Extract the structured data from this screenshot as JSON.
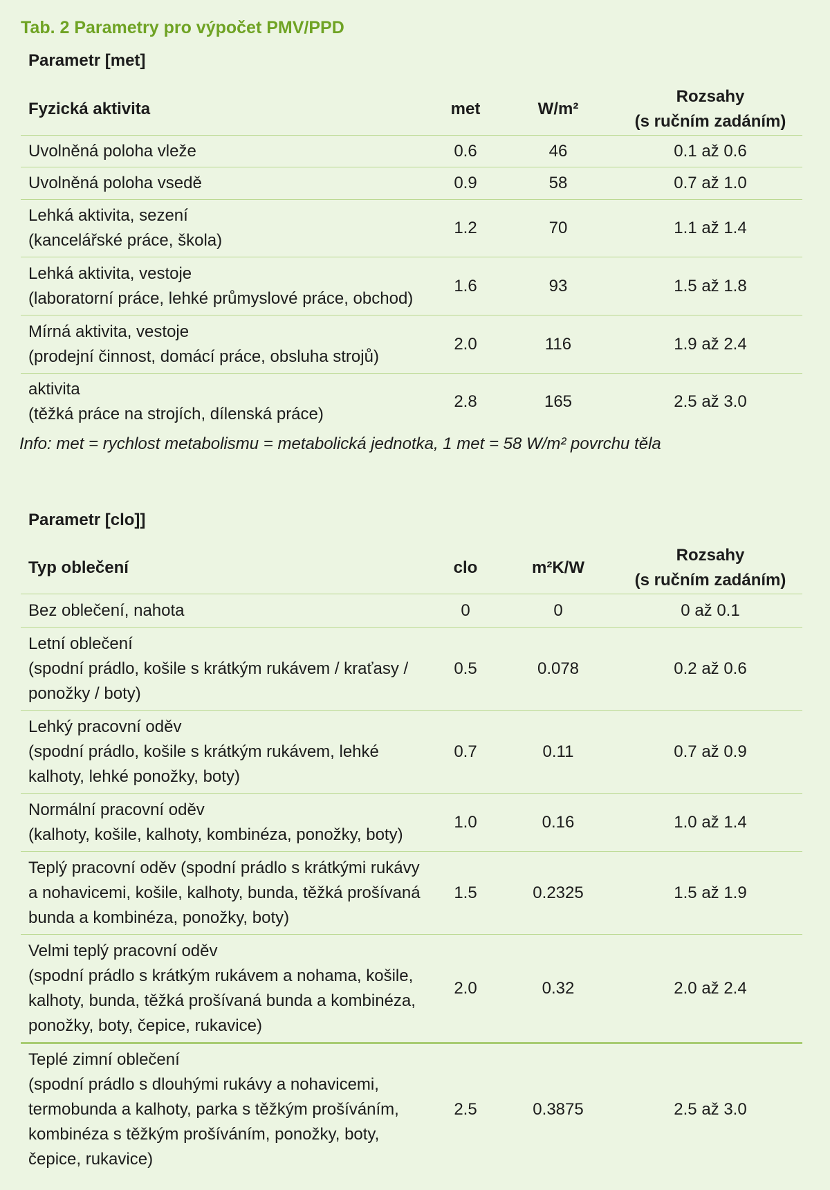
{
  "caption": "Tab. 2 Parametry pro výpočet PMV/PPD",
  "met_table": {
    "section_title": "Parametr [met]",
    "headers": {
      "label": "Fyzická aktivita",
      "col_a": "met",
      "col_b": "W/m²",
      "range_line1": "Rozsahy",
      "range_line2": "(s ručním zadáním)"
    },
    "rows": [
      {
        "l1": "Uvolněná poloha vleže",
        "l2": "",
        "a": "0.6",
        "b": "46",
        "r": "0.1 až 0.6"
      },
      {
        "l1": "Uvolněná poloha vsedě",
        "l2": "",
        "a": "0.9",
        "b": "58",
        "r": "0.7 až 1.0"
      },
      {
        "l1": "Lehká aktivita, sezení",
        "l2": "(kancelářské práce, škola)",
        "a": "1.2",
        "b": "70",
        "r": "1.1 až 1.4"
      },
      {
        "l1": "Lehká aktivita, vestoje",
        "l2": "(laboratorní práce, lehké průmyslové práce, obchod)",
        "a": "1.6",
        "b": "93",
        "r": "1.5 až 1.8"
      },
      {
        "l1": "Mírná aktivita, vestoje",
        "l2": "(prodejní činnost, domácí práce, obsluha strojů)",
        "a": "2.0",
        "b": "116",
        "r": "1.9 až 2.4"
      },
      {
        "l1": "aktivita",
        "l2": "(těžká práce na strojích, dílenská práce)",
        "a": "2.8",
        "b": "165",
        "r": "2.5 až 3.0"
      }
    ],
    "info": "Info: met = rychlost metabolismu = metabolická jednotka, 1 met = 58 W/m² povrchu těla"
  },
  "clo_table": {
    "section_title": "Parametr [clo]]",
    "headers": {
      "label": "Typ oblečení",
      "col_a": "clo",
      "col_b": "m²K/W",
      "range_line1": "Rozsahy",
      "range_line2": "(s ručním zadáním)"
    },
    "rows": [
      {
        "lines": [
          "Bez oblečení, nahota"
        ],
        "a": "0",
        "b": "0",
        "r": "0 až 0.1"
      },
      {
        "lines": [
          "Letní oblečení",
          "(spodní prádlo, košile s krátkým rukávem / kraťasy /",
          "ponožky / boty)"
        ],
        "a": "0.5",
        "b": "0.078",
        "r": "0.2 až 0.6"
      },
      {
        "lines": [
          "Lehký pracovní oděv",
          "(spodní prádlo, košile s krátkým rukávem, lehké",
          "kalhoty, lehké ponožky, boty)"
        ],
        "a": "0.7",
        "b": "0.11",
        "r": "0.7 až 0.9"
      },
      {
        "lines": [
          "Normální pracovní oděv",
          "(kalhoty, košile, kalhoty, kombinéza, ponožky, boty)"
        ],
        "a": "1.0",
        "b": "0.16",
        "r": "1.0 až 1.4"
      },
      {
        "lines": [
          "Teplý pracovní oděv (spodní prádlo s krátkými rukávy",
          "a nohavicemi, košile, kalhoty, bunda, těžká prošívaná",
          "bunda a kombinéza, ponožky, boty)"
        ],
        "a": "1.5",
        "b": "0.2325",
        "r": "1.5 až 1.9"
      },
      {
        "lines": [
          "Velmi teplý pracovní oděv",
          "(spodní prádlo s krátkým rukávem a nohama, košile,",
          "kalhoty, bunda, těžká prošívaná bunda a kombinéza,",
          "ponožky, boty, čepice, rukavice)"
        ],
        "a": "2.0",
        "b": "0.32",
        "r": "2.0 až 2.4"
      },
      {
        "lines": [
          "Teplé zimní oblečení",
          "(spodní prádlo s dlouhými rukávy a nohavicemi,",
          "termobunda a kalhoty, parka s těžkým prošíváním,",
          "kombinéza s těžkým prošíváním, ponožky, boty,",
          "čepice, rukavice)"
        ],
        "a": "2.5",
        "b": "0.3875",
        "r": "2.5 až 3.0"
      }
    ]
  }
}
